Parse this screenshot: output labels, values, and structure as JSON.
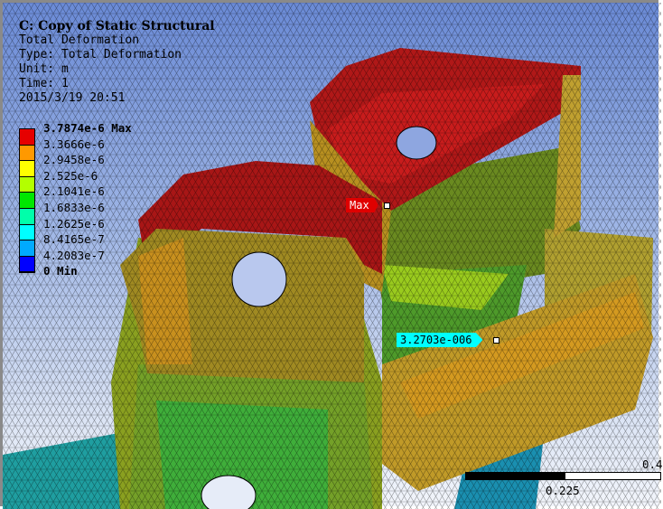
{
  "info": {
    "title": "C: Copy of Static Structural",
    "result": "Total Deformation",
    "type": "Type: Total Deformation",
    "unit": "Unit: m",
    "time": "Time: 1",
    "date": "2015/3/19 20:51"
  },
  "legend": {
    "labels": [
      "3.7874e-6 Max",
      "3.3666e-6",
      "2.9458e-6",
      "2.525e-6",
      "2.1041e-6",
      "1.6833e-6",
      "1.2625e-6",
      "8.4165e-7",
      "4.2083e-7",
      "0 Min"
    ],
    "colors": [
      "#e60000",
      "#ff9900",
      "#ffff00",
      "#b3ff00",
      "#00e600",
      "#00ffaa",
      "#00ffff",
      "#00aaff",
      "#0000ff"
    ]
  },
  "probes": {
    "max_label": "Max",
    "max_color": "#e00000",
    "probe_value": "3.2703e-006",
    "probe_color": "#00ffff"
  },
  "scale": {
    "mid": "0.225",
    "end": "0.4"
  }
}
